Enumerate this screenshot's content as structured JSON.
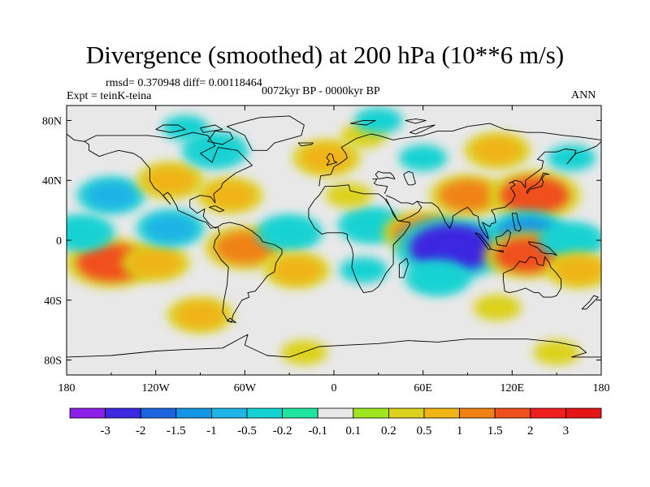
{
  "chart_data": {
    "type": "heatmap",
    "title": "Divergence (smoothed) at 200 hPa (10**6 m/s)",
    "stats_text": "rmsd= 0.370948 diff= 0.00118464",
    "experiment": "Expt = teinK-teina",
    "period": "0072kyr BP - 0000kyr BP",
    "season": "ANN",
    "xlim": [
      -180,
      180
    ],
    "ylim": [
      -90,
      90
    ],
    "x_ticks": [
      {
        "value": -180,
        "label": "180"
      },
      {
        "value": -120,
        "label": "120W"
      },
      {
        "value": -60,
        "label": "60W"
      },
      {
        "value": 0,
        "label": "0"
      },
      {
        "value": 60,
        "label": "60E"
      },
      {
        "value": 120,
        "label": "120E"
      },
      {
        "value": 180,
        "label": "180"
      }
    ],
    "y_ticks": [
      {
        "value": 80,
        "label": "80N"
      },
      {
        "value": 40,
        "label": "40N"
      },
      {
        "value": 0,
        "label": "0"
      },
      {
        "value": -40,
        "label": "40S"
      },
      {
        "value": -80,
        "label": "80S"
      }
    ],
    "colorbar": {
      "levels": [
        "-3",
        "-2",
        "-1.5",
        "-1",
        "-0.5",
        "-0.2",
        "-0.1",
        "0.1",
        "0.2",
        "0.5",
        "1",
        "1.5",
        "2",
        "3"
      ],
      "colors": [
        "#8b1ee8",
        "#3c28e0",
        "#1a64e0",
        "#1496e6",
        "#1eb4e6",
        "#14d2d2",
        "#1ee6a0",
        "#e8e8e8",
        "#a0e61e",
        "#dcd21e",
        "#f0b414",
        "#f08214",
        "#f0501e",
        "#f01e1e",
        "#e61414"
      ]
    },
    "anomaly_field": [
      {
        "lon": -150,
        "lat": -15,
        "value": 1.8
      },
      {
        "lon": -120,
        "lat": -15,
        "value": 0.6
      },
      {
        "lon": -150,
        "lat": 30,
        "value": -0.6
      },
      {
        "lon": -110,
        "lat": 40,
        "value": 0.6
      },
      {
        "lon": -80,
        "lat": 60,
        "value": -0.5
      },
      {
        "lon": -100,
        "lat": 75,
        "value": -0.3
      },
      {
        "lon": -70,
        "lat": 30,
        "value": 0.5
      },
      {
        "lon": -110,
        "lat": 8,
        "value": -0.6
      },
      {
        "lon": -170,
        "lat": 5,
        "value": -0.5
      },
      {
        "lon": -60,
        "lat": -5,
        "value": 1.2
      },
      {
        "lon": -30,
        "lat": 5,
        "value": -0.5
      },
      {
        "lon": -25,
        "lat": -20,
        "value": 0.5
      },
      {
        "lon": -5,
        "lat": 55,
        "value": 0.6
      },
      {
        "lon": 20,
        "lat": 70,
        "value": 0.3
      },
      {
        "lon": 30,
        "lat": 80,
        "value": -0.4
      },
      {
        "lon": 25,
        "lat": 10,
        "value": -0.5
      },
      {
        "lon": 10,
        "lat": 30,
        "value": 0.3
      },
      {
        "lon": 20,
        "lat": -20,
        "value": -0.4
      },
      {
        "lon": 60,
        "lat": 5,
        "value": 1.2
      },
      {
        "lon": 80,
        "lat": -5,
        "value": -3.0
      },
      {
        "lon": 70,
        "lat": -25,
        "value": -0.5
      },
      {
        "lon": 60,
        "lat": 55,
        "value": -0.4
      },
      {
        "lon": 110,
        "lat": 60,
        "value": 0.5
      },
      {
        "lon": 90,
        "lat": 30,
        "value": 1.0
      },
      {
        "lon": 135,
        "lat": 30,
        "value": 1.8
      },
      {
        "lon": 130,
        "lat": 5,
        "value": -1.2
      },
      {
        "lon": 130,
        "lat": -10,
        "value": 1.5
      },
      {
        "lon": 160,
        "lat": 0,
        "value": -0.5
      },
      {
        "lon": 165,
        "lat": -20,
        "value": 0.5
      },
      {
        "lon": 160,
        "lat": 55,
        "value": -0.4
      },
      {
        "lon": -90,
        "lat": -50,
        "value": 0.5
      },
      {
        "lon": 110,
        "lat": -45,
        "value": 0.4
      },
      {
        "lon": 150,
        "lat": -75,
        "value": 0.3
      },
      {
        "lon": -20,
        "lat": -75,
        "value": 0.3
      }
    ]
  }
}
